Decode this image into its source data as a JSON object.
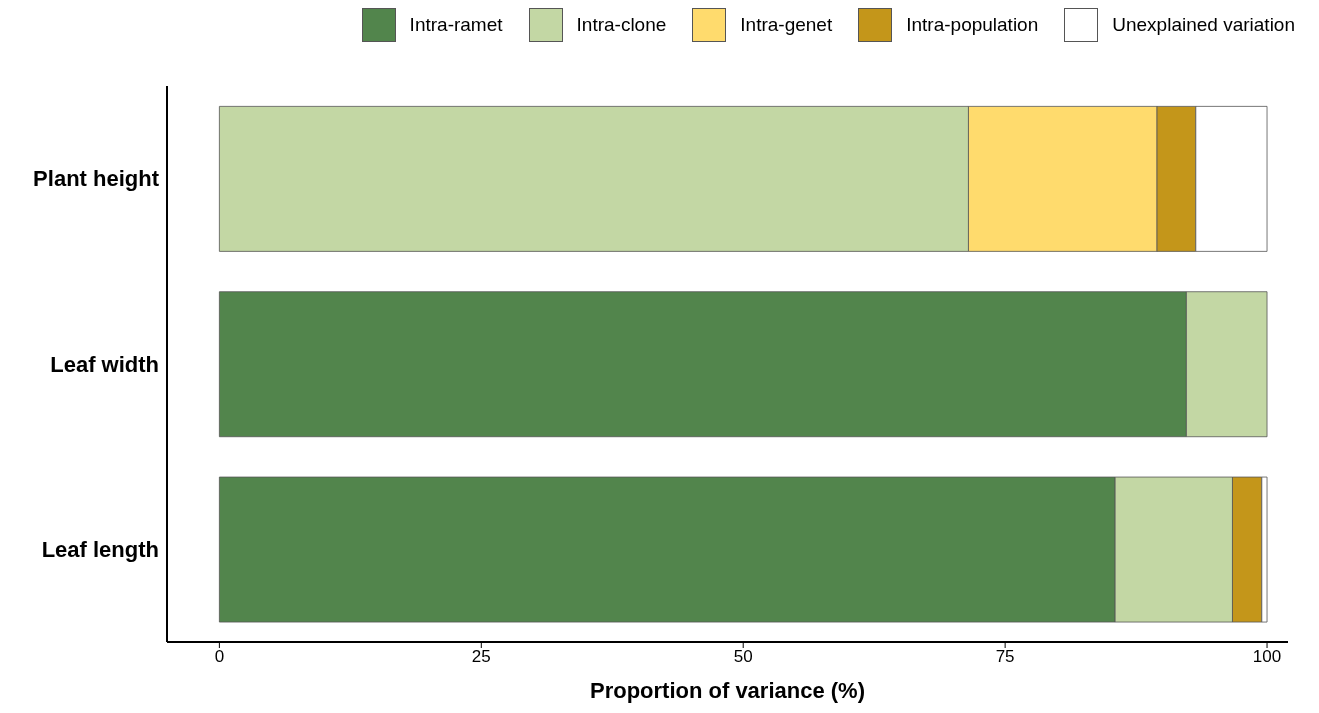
{
  "chart_data": {
    "type": "bar",
    "orientation": "horizontal",
    "stacked": true,
    "xlabel": "Proportion of variance (%)",
    "categories": [
      "Plant height",
      "Leaf width",
      "Leaf length"
    ],
    "series": [
      {
        "name": "Intra-ramet",
        "color": "#52854c",
        "values": [
          0,
          92.3,
          85.5
        ]
      },
      {
        "name": "Intra-clone",
        "color": "#c3d7a4",
        "values": [
          71.5,
          7.7,
          11.2
        ]
      },
      {
        "name": "Intra-genet",
        "color": "#ffdb6d",
        "values": [
          18.0,
          0,
          0
        ]
      },
      {
        "name": "Intra-population",
        "color": "#c4961a",
        "values": [
          3.7,
          0,
          2.8
        ]
      },
      {
        "name": "Unexplained variation",
        "color": "#ffffff",
        "values": [
          6.8,
          0,
          0.5
        ]
      }
    ],
    "xlim": [
      -5,
      102
    ],
    "xticks": [
      0,
      25,
      50,
      75,
      100
    ],
    "grid": false,
    "legend": "top right"
  }
}
